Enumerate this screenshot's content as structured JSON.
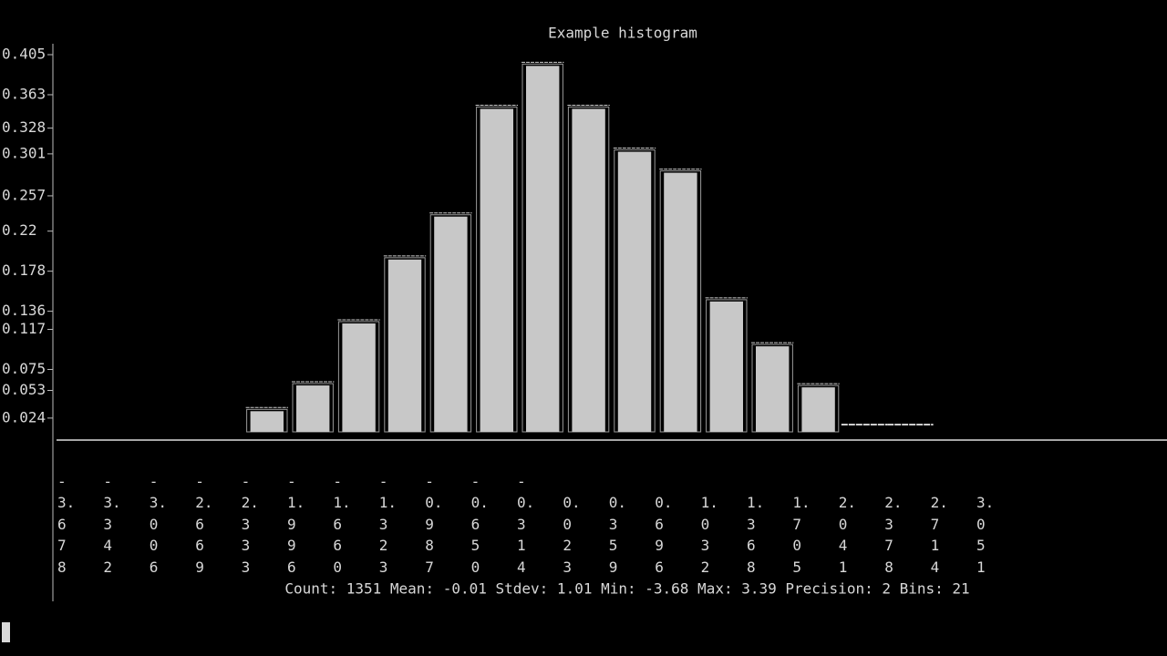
{
  "chart_data": {
    "type": "histogram",
    "title": "Example histogram",
    "categories": [
      "-3.678",
      "-3.342",
      "-3.006",
      "-2.669",
      "-2.333",
      "-1.996",
      "-1.660",
      "-1.323",
      "-0.987",
      "-0.650",
      "-0.314",
      "0.023",
      "0.359",
      "0.696",
      "1.032",
      "1.368",
      "1.705",
      "2.041",
      "2.378",
      "2.714",
      "3.051"
    ],
    "values": [
      null,
      null,
      null,
      null,
      0.036,
      0.063,
      0.128,
      0.195,
      0.24,
      0.353,
      0.398,
      0.353,
      0.308,
      0.286,
      0.151,
      0.104,
      0.061,
      0,
      0,
      null,
      null
    ],
    "color": "#c8c8c8",
    "ylim": [
      0,
      0.405
    ],
    "yticks": [
      0.405,
      0.363,
      0.328,
      0.301,
      0.257,
      0.22,
      0.178,
      0.136,
      0.117,
      0.075,
      0.053,
      0.024
    ],
    "stats": "Count: 1351 Mean: -0.01 Stdev: 1.01 Min: -3.68 Max: 3.39 Precision: 2 Bins: 21"
  }
}
